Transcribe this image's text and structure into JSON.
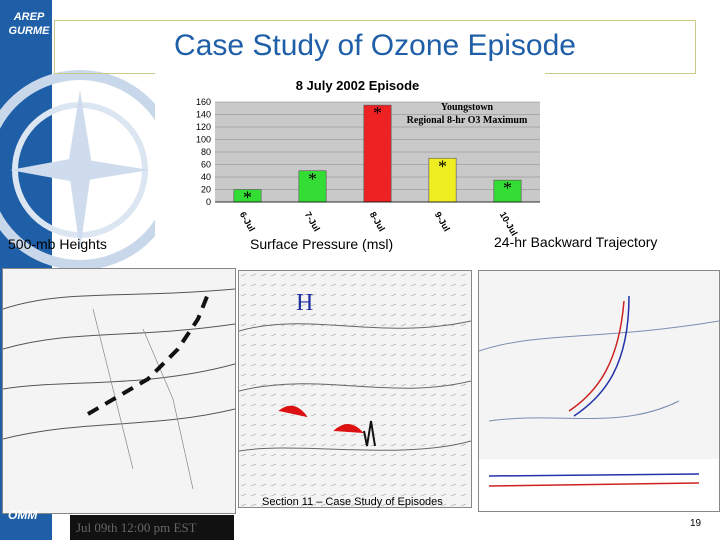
{
  "sidebar": {
    "brand_line1": "AREP",
    "brand_line2": "GURME",
    "footer_logo": "OMM"
  },
  "header": {
    "title": "Case Study of Ozone Episode"
  },
  "chart_data": {
    "type": "bar",
    "title": "8 July 2002 Episode",
    "ylabel": "",
    "categories": [
      "6-Jul",
      "7-Jul",
      "8-Jul",
      "9-Jul",
      "10-Jul"
    ],
    "values": [
      20,
      50,
      155,
      70,
      35
    ],
    "colors": [
      "#33dd33",
      "#33dd33",
      "#ee2222",
      "#eeee22",
      "#33dd33"
    ],
    "ylim": [
      0,
      160
    ],
    "yticks": [
      0,
      20,
      40,
      60,
      80,
      100,
      120,
      140,
      160
    ],
    "grid": true,
    "annotation_line1": "Youngstown",
    "annotation_line2": "Regional 8-hr O3 Maximum",
    "marker": "*"
  },
  "panels": {
    "left_label": "500-mb Heights",
    "middle_label": "Surface Pressure (msl)",
    "right_label": "24-hr Backward Trajectory",
    "high_pressure_label": "H"
  },
  "footer": {
    "section_text": "Section 11 – Case Study of Episodes",
    "page_number": "19",
    "timestamp": "Jul 09th 12:00 pm EST"
  }
}
